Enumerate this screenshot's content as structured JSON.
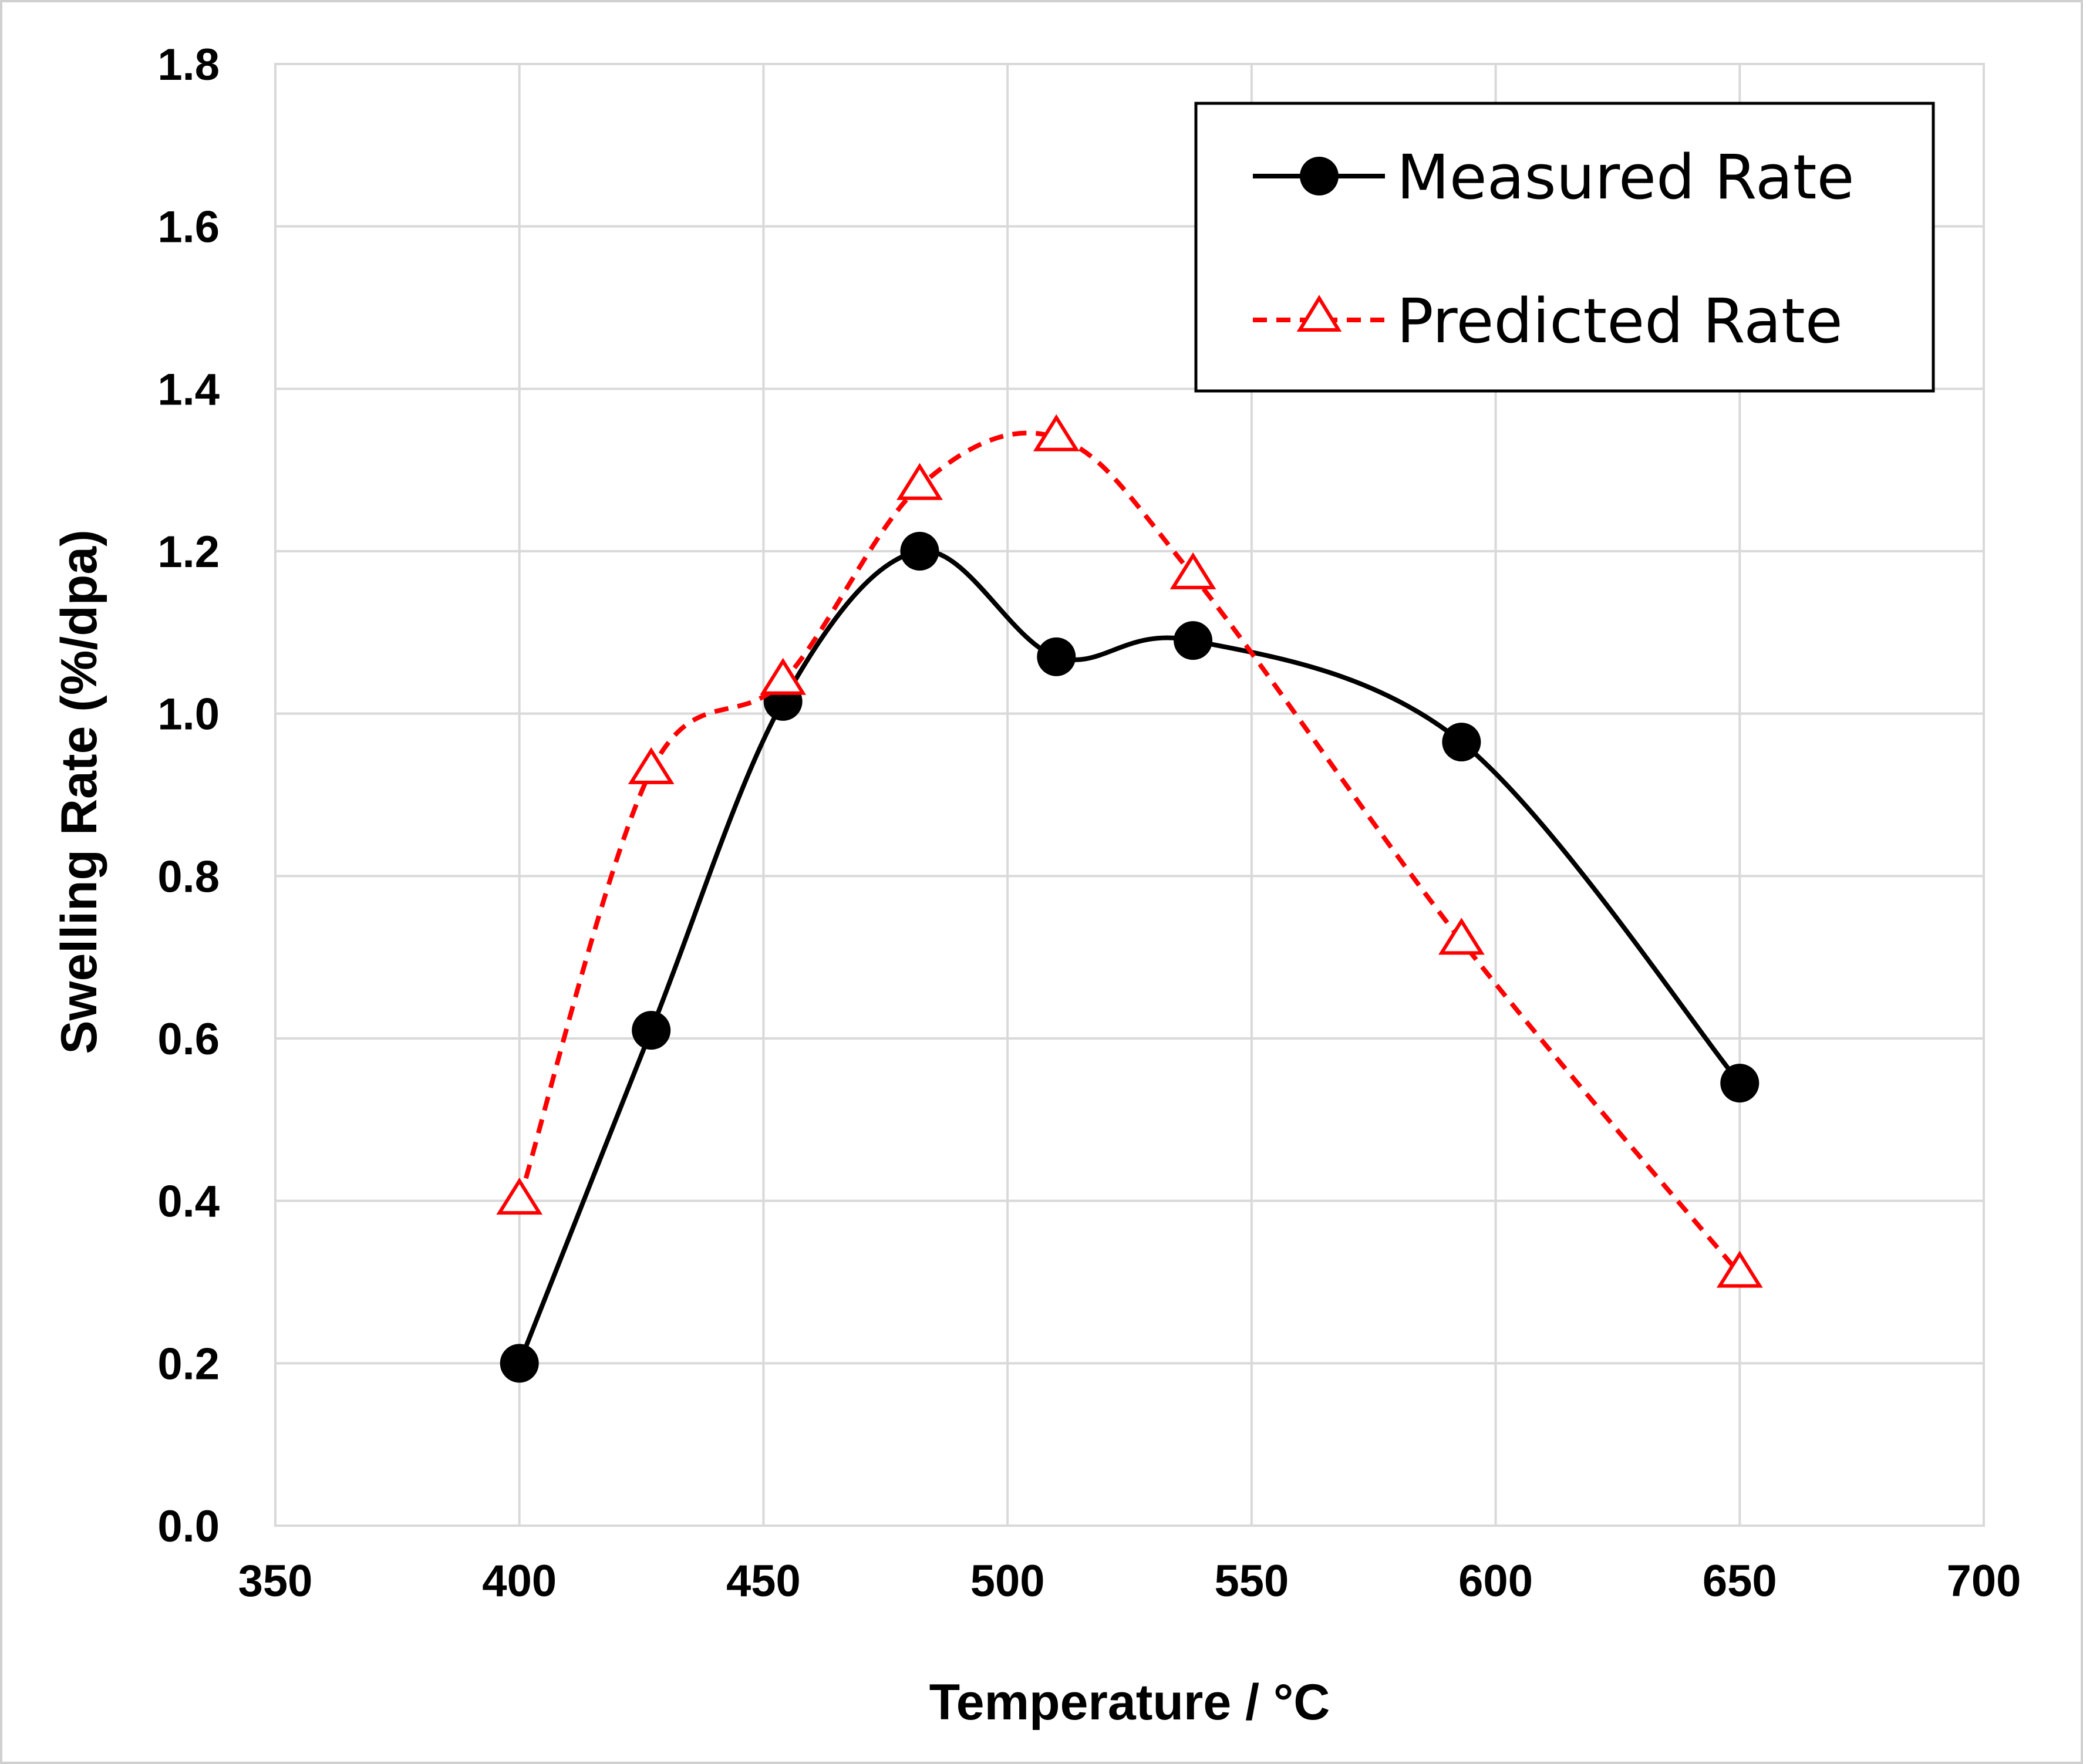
{
  "chart_data": {
    "type": "line",
    "title": "",
    "xlabel": "Temperature / °C",
    "ylabel": "Swelling Rate (%/dpa)",
    "xlim": [
      350,
      700
    ],
    "ylim": [
      0.0,
      1.8
    ],
    "xticks": [
      "350",
      "400",
      "450",
      "500",
      "550",
      "600",
      "650",
      "700"
    ],
    "yticks": [
      "0.0",
      "0.2",
      "0.4",
      "0.6",
      "0.8",
      "1.0",
      "1.2",
      "1.4",
      "1.6",
      "1.8"
    ],
    "grid": true,
    "legend_position": "top-right",
    "series": [
      {
        "name": "Measured Rate",
        "color": "#000000",
        "marker": "filled-circle",
        "line_style": "solid-smooth",
        "x": [
          400,
          427,
          454,
          482,
          510,
          538,
          593,
          650
        ],
        "y": [
          0.2,
          0.61,
          1.015,
          1.2,
          1.07,
          1.09,
          0.965,
          0.545
        ]
      },
      {
        "name": "Predicted Rate",
        "color": "#ff0000",
        "marker": "open-triangle",
        "line_style": "dashed-smooth",
        "x": [
          400,
          427,
          454,
          482,
          510,
          538,
          593,
          650
        ],
        "y": [
          0.4,
          0.93,
          1.04,
          1.28,
          1.34,
          1.17,
          0.72,
          0.31
        ]
      }
    ]
  }
}
